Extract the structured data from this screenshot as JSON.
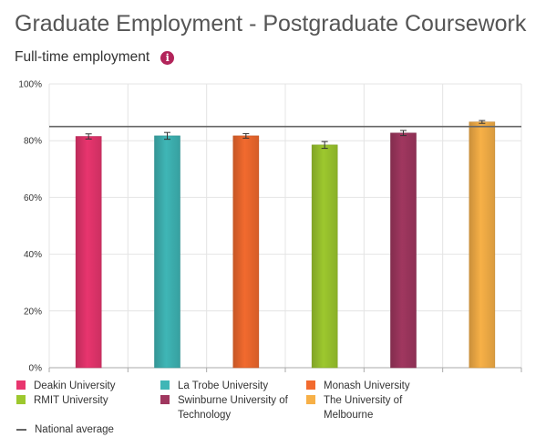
{
  "page": {
    "title": "Graduate Employment - Postgraduate Coursework",
    "subtitle": "Full-time employment",
    "info_icon": "info-icon",
    "info_glyph": "i"
  },
  "chart_data": {
    "type": "bar",
    "title": "",
    "xlabel": "",
    "ylabel": "",
    "ylim": [
      0,
      100
    ],
    "y_ticks": [
      "0%",
      "20%",
      "40%",
      "60%",
      "80%",
      "100%"
    ],
    "y_tick_values": [
      0,
      20,
      40,
      60,
      80,
      100
    ],
    "grid": true,
    "legend_position": "bottom",
    "categories": [
      "Deakin University",
      "La Trobe University",
      "Monash University",
      "RMIT University",
      "Swinburne University of Technology",
      "The University of Melbourne"
    ],
    "values": [
      81.5,
      81.7,
      81.7,
      78.5,
      82.7,
      86.6
    ],
    "error_low": [
      80.6,
      80.5,
      80.9,
      77.3,
      81.8,
      86.1
    ],
    "error_high": [
      82.4,
      82.9,
      82.5,
      79.7,
      83.6,
      87.1
    ],
    "colors": [
      "#e8356e",
      "#3fb6b6",
      "#f26a2e",
      "#9dc82e",
      "#a0375f",
      "#f7b047"
    ],
    "national_average": 85,
    "national_average_label": "National average",
    "national_average_color": "#666666"
  }
}
